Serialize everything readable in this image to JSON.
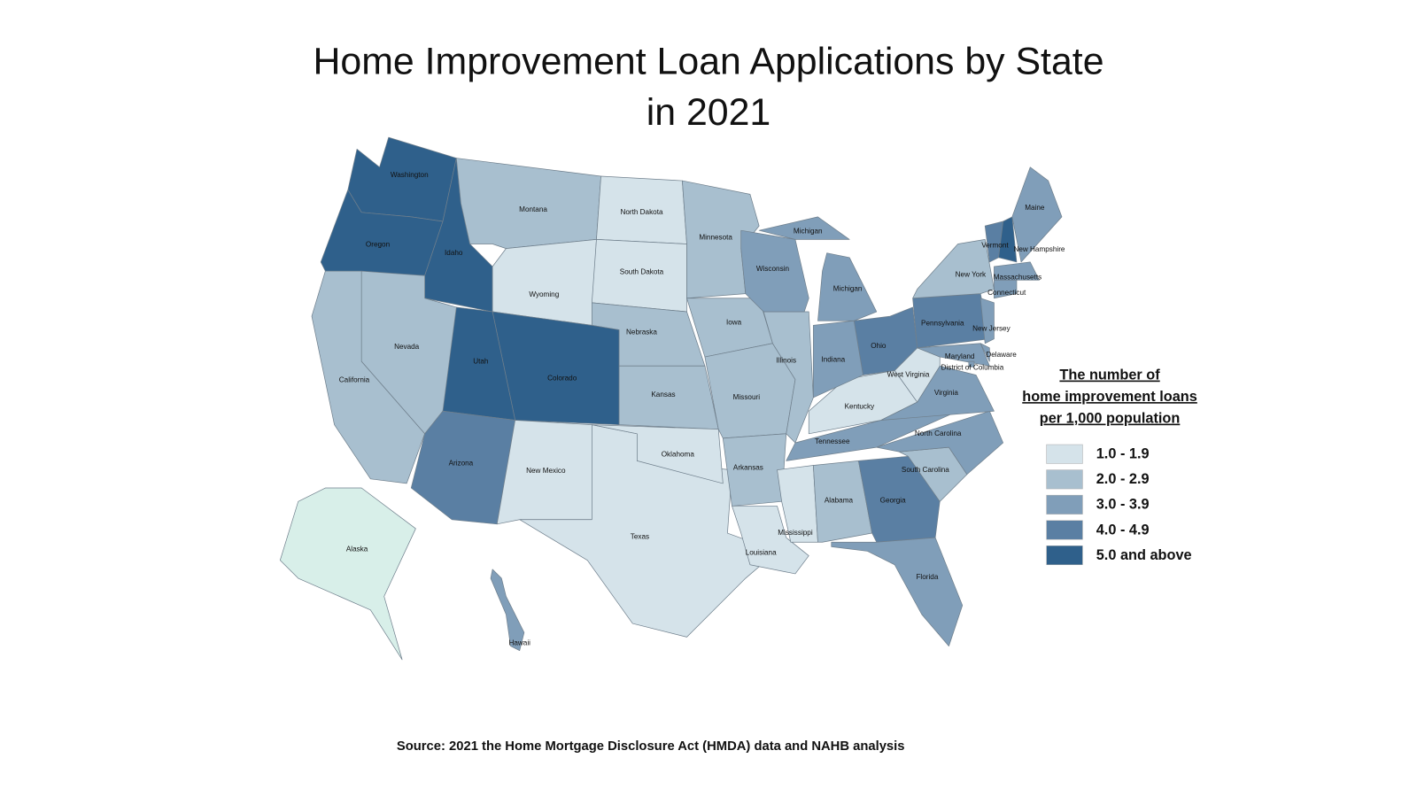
{
  "title": [
    "Home Improvement Loan Applications by State",
    "in 2021"
  ],
  "legend": {
    "title": [
      "The number of",
      "home improvement loans",
      "per 1,000 population"
    ],
    "items": [
      {
        "label": "1.0 - 1.9",
        "color": "#d5e3ea"
      },
      {
        "label": "2.0 - 2.9",
        "color": "#a8bfcf"
      },
      {
        "label": "3.0 - 3.9",
        "color": "#809eb9"
      },
      {
        "label": "4.0 - 4.9",
        "color": "#5a7fa3"
      },
      {
        "label": "5.0 and above",
        "color": "#2f608b"
      }
    ]
  },
  "states": [
    {
      "name": "Washington",
      "color": "#2f608b"
    },
    {
      "name": "Oregon",
      "color": "#2f608b"
    },
    {
      "name": "Idaho",
      "color": "#2f608b"
    },
    {
      "name": "Montana",
      "color": "#a8bfcf"
    },
    {
      "name": "Wyoming",
      "color": "#d5e3ea"
    },
    {
      "name": "North Dakota",
      "color": "#d5e3ea"
    },
    {
      "name": "South Dakota",
      "color": "#d5e3ea"
    },
    {
      "name": "Nebraska",
      "color": "#a8bfcf"
    },
    {
      "name": "Kansas",
      "color": "#a8bfcf"
    },
    {
      "name": "Colorado",
      "color": "#2f608b"
    },
    {
      "name": "Utah",
      "color": "#2f608b"
    },
    {
      "name": "Nevada",
      "color": "#a8bfcf"
    },
    {
      "name": "California",
      "color": "#a8bfcf"
    },
    {
      "name": "Arizona",
      "color": "#5a7fa3"
    },
    {
      "name": "New Mexico",
      "color": "#d5e3ea"
    },
    {
      "name": "Texas",
      "color": "#d5e3ea"
    },
    {
      "name": "Oklahoma",
      "color": "#d5e3ea"
    },
    {
      "name": "Minnesota",
      "color": "#a8bfcf"
    },
    {
      "name": "Iowa",
      "color": "#a8bfcf"
    },
    {
      "name": "Missouri",
      "color": "#a8bfcf"
    },
    {
      "name": "Arkansas",
      "color": "#a8bfcf"
    },
    {
      "name": "Louisiana",
      "color": "#d5e3ea"
    },
    {
      "name": "Mississippi",
      "color": "#d5e3ea"
    },
    {
      "name": "Alabama",
      "color": "#a8bfcf"
    },
    {
      "name": "Georgia",
      "color": "#5a7fa3"
    },
    {
      "name": "Florida",
      "color": "#809eb9"
    },
    {
      "name": "South Carolina",
      "color": "#a8bfcf"
    },
    {
      "name": "North Carolina",
      "color": "#809eb9"
    },
    {
      "name": "Tennessee",
      "color": "#809eb9"
    },
    {
      "name": "Kentucky",
      "color": "#d5e3ea"
    },
    {
      "name": "Virginia",
      "color": "#809eb9"
    },
    {
      "name": "West Virginia",
      "color": "#d5e3ea"
    },
    {
      "name": "Ohio",
      "color": "#5a7fa3"
    },
    {
      "name": "Indiana",
      "color": "#809eb9"
    },
    {
      "name": "Illinois",
      "color": "#a8bfcf"
    },
    {
      "name": "Wisconsin",
      "color": "#809eb9"
    },
    {
      "name": "Michigan",
      "color": "#809eb9"
    },
    {
      "name": "Pennsylvania",
      "color": "#5a7fa3"
    },
    {
      "name": "New York",
      "color": "#a8bfcf"
    },
    {
      "name": "New Jersey",
      "color": "#809eb9"
    },
    {
      "name": "Delaware",
      "color": "#809eb9"
    },
    {
      "name": "Maryland",
      "color": "#809eb9"
    },
    {
      "name": "District of Columbia",
      "color": "#809eb9"
    },
    {
      "name": "Vermont",
      "color": "#5a7fa3"
    },
    {
      "name": "New Hampshire",
      "color": "#2f608b"
    },
    {
      "name": "Maine",
      "color": "#809eb9"
    },
    {
      "name": "Massachusetts",
      "color": "#809eb9"
    },
    {
      "name": "Connecticut",
      "color": "#809eb9"
    },
    {
      "name": "Alaska",
      "color": "#d8efe9"
    },
    {
      "name": "Hawaii",
      "color": "#809eb9"
    }
  ],
  "source": "Source: 2021 the Home Mortgage Disclosure Act (HMDA) data and NAHB analysis"
}
